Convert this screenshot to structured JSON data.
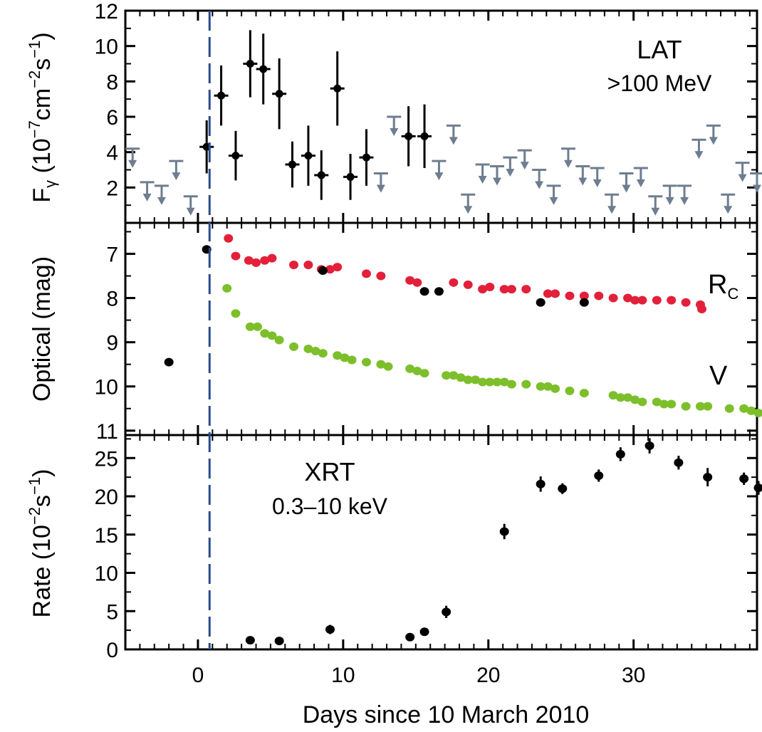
{
  "chart_data": {
    "type": "scatter",
    "xlabel": "Days since 10 March 2010",
    "xlim": [
      -5,
      38.5
    ],
    "xticks": [
      0,
      10,
      20,
      30
    ],
    "vline": {
      "x": 0.8,
      "color": "#2b4c8c",
      "style": "dashed"
    },
    "colors": {
      "detection": "#000000",
      "upper_limit": "#6e7d8f",
      "rc": "#e3203a",
      "v": "#7cbf2b",
      "vline": "#2b4c8c"
    },
    "panels": [
      {
        "id": "lat",
        "ylabel": "Fγ (10⁻⁷cm⁻²s⁻¹)",
        "ylabel_main": "F",
        "ylabel_sub": "γ",
        "ylabel_rest": " (10",
        "ylabel_exp1": "−7",
        "ylabel_mid1": "cm",
        "ylabel_exp2": "−2",
        "ylabel_mid2": "s",
        "ylabel_exp3": "−1",
        "ylabel_end": ")",
        "ylim": [
          0,
          12
        ],
        "yticks": [
          2,
          4,
          6,
          8,
          10,
          12
        ],
        "annotation": {
          "line1": "LAT",
          "line2": ">100 MeV"
        },
        "series": [
          {
            "name": "detections",
            "x": [
              0.6,
              1.6,
              2.6,
              3.6,
              4.5,
              5.6,
              6.5,
              7.6,
              8.5,
              10.5,
              9.6,
              11.6,
              14.5,
              15.6
            ],
            "y": [
              4.3,
              7.2,
              3.8,
              9.0,
              8.7,
              7.3,
              3.3,
              3.8,
              2.7,
              2.6,
              7.6,
              3.7,
              4.9,
              4.9
            ],
            "yerr": [
              1.5,
              1.7,
              1.4,
              1.9,
              2.0,
              2.0,
              1.3,
              1.7,
              1.4,
              1.3,
              2.1,
              1.6,
              1.7,
              1.8
            ]
          },
          {
            "name": "upper_limits",
            "x": [
              -4.5,
              -3.5,
              -2.5,
              -1.5,
              -0.5,
              12.6,
              13.5,
              16.6,
              17.6,
              18.6,
              19.6,
              20.6,
              21.5,
              22.5,
              23.5,
              24.5,
              25.5,
              26.5,
              27.5,
              28.5,
              29.5,
              30.5,
              31.5,
              32.5,
              33.5,
              34.5,
              35.5,
              36.5,
              37.5,
              38.5
            ],
            "y": [
              4.2,
              2.3,
              2.1,
              3.5,
              1.5,
              2.8,
              6.0,
              3.5,
              5.5,
              1.6,
              3.3,
              3.2,
              3.7,
              4.1,
              3.0,
              2.1,
              4.2,
              3.2,
              3.1,
              1.6,
              2.8,
              3.1,
              1.5,
              2.1,
              2.1,
              4.7,
              5.5,
              1.6,
              3.4,
              2.8
            ]
          }
        ]
      },
      {
        "id": "optical",
        "ylabel": "Optical (mag)",
        "ylim": [
          11.1,
          6.3
        ],
        "yticks": [
          7,
          8,
          9,
          10,
          11
        ],
        "inverted": true,
        "series": [
          {
            "name": "R",
            "label_main": "R",
            "label_sub": "C",
            "x": [
              2.1,
              2.6,
              3.5,
              4.0,
              4.6,
              5.1,
              6.6,
              7.6,
              8.5,
              9.1,
              9.6,
              11.6,
              12.6,
              14.6,
              15.1,
              17.6,
              18.6,
              19.6,
              20.1,
              21.1,
              21.6,
              22.6,
              24.1,
              24.6,
              25.6,
              26.6,
              27.6,
              28.6,
              29.6,
              30.1,
              30.6,
              31.6,
              32.6,
              33.6,
              34.6,
              34.7
            ],
            "y": [
              6.65,
              7.05,
              7.15,
              7.2,
              7.15,
              7.1,
              7.25,
              7.25,
              7.35,
              7.35,
              7.3,
              7.45,
              7.5,
              7.6,
              7.65,
              7.65,
              7.7,
              7.8,
              7.75,
              7.8,
              7.8,
              7.8,
              7.9,
              7.9,
              7.95,
              7.95,
              7.95,
              8.0,
              8.0,
              8.05,
              8.05,
              8.05,
              8.05,
              8.1,
              8.15,
              8.25
            ]
          },
          {
            "name": "V",
            "label_main": "V",
            "x": [
              2.0,
              2.6,
              3.6,
              4.1,
              4.6,
              5.1,
              5.6,
              6.6,
              7.6,
              8.1,
              8.6,
              9.6,
              10.1,
              10.6,
              11.6,
              12.6,
              13.1,
              14.6,
              15.1,
              15.6,
              17.1,
              17.6,
              18.1,
              18.6,
              19.1,
              19.6,
              20.1,
              20.6,
              21.1,
              21.6,
              22.6,
              23.6,
              24.1,
              24.6,
              25.6,
              26.6,
              28.6,
              29.1,
              29.6,
              30.1,
              30.6,
              31.6,
              32.1,
              32.6,
              33.6,
              34.6,
              35.1,
              36.6,
              37.6,
              38.1,
              38.6
            ],
            "y": [
              7.78,
              8.35,
              8.65,
              8.65,
              8.8,
              8.85,
              8.95,
              9.1,
              9.15,
              9.2,
              9.25,
              9.3,
              9.35,
              9.4,
              9.45,
              9.5,
              9.55,
              9.6,
              9.65,
              9.7,
              9.75,
              9.75,
              9.8,
              9.85,
              9.85,
              9.9,
              9.9,
              9.9,
              9.9,
              9.95,
              9.95,
              10.0,
              10.0,
              10.05,
              10.1,
              10.15,
              10.2,
              10.25,
              10.25,
              10.3,
              10.35,
              10.35,
              10.4,
              10.4,
              10.45,
              10.45,
              10.45,
              10.5,
              10.5,
              10.55,
              10.6
            ]
          },
          {
            "name": "black",
            "x": [
              -2.0,
              0.6,
              8.6,
              15.6,
              16.6,
              23.6,
              26.6
            ],
            "y": [
              9.45,
              6.9,
              7.38,
              7.85,
              7.85,
              8.1,
              8.1
            ]
          }
        ]
      },
      {
        "id": "xrt",
        "ylabel": "Rate (10⁻²s⁻¹)",
        "ylabel_main": "Rate (10",
        "ylabel_exp1": "−2",
        "ylabel_mid": "s",
        "ylabel_exp2": "−1",
        "ylabel_end": ")",
        "ylim": [
          0,
          28
        ],
        "yticks": [
          0,
          5,
          10,
          15,
          20,
          25
        ],
        "annotation": {
          "line1": "XRT",
          "line2": "0.3–10 keV"
        },
        "series": [
          {
            "name": "xrt",
            "x": [
              3.6,
              5.6,
              9.1,
              14.6,
              15.6,
              17.1,
              21.1,
              23.6,
              25.1,
              27.6,
              29.1,
              31.1,
              33.1,
              35.1,
              37.6,
              38.6
            ],
            "y": [
              1.2,
              1.1,
              2.6,
              1.6,
              2.3,
              4.9,
              15.4,
              21.6,
              21.0,
              22.7,
              25.5,
              26.6,
              24.4,
              22.5,
              22.3,
              21.1
            ],
            "yerr": [
              0.5,
              0.5,
              0.6,
              0.5,
              0.5,
              0.8,
              1.0,
              1.0,
              0.7,
              0.8,
              0.9,
              1.0,
              0.9,
              1.2,
              0.8,
              0.9
            ]
          }
        ]
      }
    ]
  }
}
